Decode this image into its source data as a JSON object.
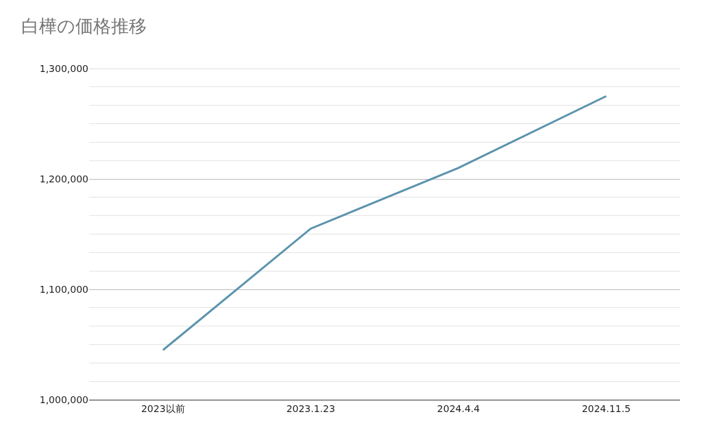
{
  "chart_data": {
    "type": "line",
    "title": "白樺の価格推移",
    "categories": [
      "2023以前",
      "2023.1.23",
      "2024.4.4",
      "2024.11.5"
    ],
    "series": [
      {
        "color": "#5b93ad",
        "values": [
          1045000,
          1155000,
          1210000,
          1275000
        ]
      }
    ],
    "ylim": [
      1000000,
      1300000
    ],
    "yticks": [
      {
        "value": 1000000,
        "label": "1,000,000"
      },
      {
        "value": 1100000,
        "label": "1,100,000"
      },
      {
        "value": 1200000,
        "label": "1,200,000"
      },
      {
        "value": 1300000,
        "label": "1,300,000"
      }
    ],
    "grid": "y",
    "marker": "none",
    "line_style": "solid"
  }
}
